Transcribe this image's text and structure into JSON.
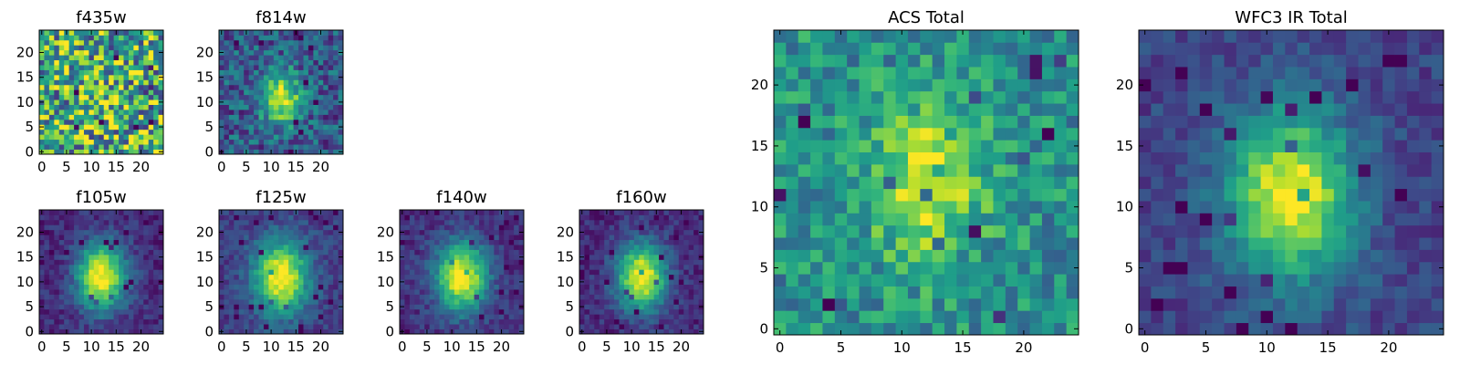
{
  "chart_data": [
    {
      "type": "heatmap",
      "title": "f435w",
      "xlim": [
        0,
        25
      ],
      "ylim": [
        0,
        25
      ],
      "xticks": [
        "0",
        "5",
        "10",
        "15",
        "20"
      ],
      "yticks": [
        "0",
        "5",
        "10",
        "15",
        "20"
      ],
      "colormap": "viridis",
      "peak": [
        12,
        12
      ],
      "peak_strength": 0.05,
      "spread": 4.0,
      "noise": 0.45,
      "base": 0.62
    },
    {
      "type": "heatmap",
      "title": "f814w",
      "xlim": [
        0,
        25
      ],
      "ylim": [
        0,
        25
      ],
      "xticks": [
        "0",
        "5",
        "10",
        "15",
        "20"
      ],
      "yticks": [
        "0",
        "5",
        "10",
        "15",
        "20"
      ],
      "colormap": "viridis",
      "peak": [
        12,
        11
      ],
      "peak_strength": 0.7,
      "spread": 2.8,
      "noise": 0.22,
      "base": 0.28
    },
    {
      "type": "heatmap",
      "title": "f105w",
      "xlim": [
        0,
        25
      ],
      "ylim": [
        0,
        25
      ],
      "xticks": [
        "0",
        "5",
        "10",
        "15",
        "20"
      ],
      "yticks": [
        "0",
        "5",
        "10",
        "15",
        "20"
      ],
      "colormap": "viridis",
      "peak": [
        12,
        11
      ],
      "peak_strength": 0.9,
      "spread": 3.5,
      "noise": 0.1,
      "base": 0.12
    },
    {
      "type": "heatmap",
      "title": "f125w",
      "xlim": [
        0,
        25
      ],
      "ylim": [
        0,
        25
      ],
      "xticks": [
        "0",
        "5",
        "10",
        "15",
        "20"
      ],
      "yticks": [
        "0",
        "5",
        "10",
        "15",
        "20"
      ],
      "colormap": "viridis",
      "peak": [
        12,
        11
      ],
      "peak_strength": 0.85,
      "spread": 3.8,
      "noise": 0.1,
      "base": 0.18
    },
    {
      "type": "heatmap",
      "title": "f140w",
      "xlim": [
        0,
        25
      ],
      "ylim": [
        0,
        25
      ],
      "xticks": [
        "0",
        "5",
        "10",
        "15",
        "20"
      ],
      "yticks": [
        "0",
        "5",
        "10",
        "15",
        "20"
      ],
      "colormap": "viridis",
      "peak": [
        12,
        11
      ],
      "peak_strength": 0.9,
      "spread": 3.6,
      "noise": 0.1,
      "base": 0.14
    },
    {
      "type": "heatmap",
      "title": "f160w",
      "xlim": [
        0,
        25
      ],
      "ylim": [
        0,
        25
      ],
      "xticks": [
        "0",
        "5",
        "10",
        "15",
        "20"
      ],
      "yticks": [
        "0",
        "5",
        "10",
        "15",
        "20"
      ],
      "colormap": "viridis",
      "peak": [
        12,
        11
      ],
      "peak_strength": 0.9,
      "spread": 3.5,
      "noise": 0.1,
      "base": 0.12
    },
    {
      "type": "heatmap",
      "title": "ACS Total",
      "xlim": [
        0,
        25
      ],
      "ylim": [
        0,
        25
      ],
      "xticks": [
        "0",
        "5",
        "10",
        "15",
        "20"
      ],
      "yticks": [
        "0",
        "5",
        "10",
        "15",
        "20"
      ],
      "colormap": "viridis",
      "peak": [
        12,
        12
      ],
      "peak_strength": 0.45,
      "spread": 3.2,
      "noise": 0.2,
      "base": 0.5
    },
    {
      "type": "heatmap",
      "title": "WFC3 IR Total",
      "xlim": [
        0,
        25
      ],
      "ylim": [
        0,
        25
      ],
      "xticks": [
        "0",
        "5",
        "10",
        "15",
        "20"
      ],
      "yticks": [
        "0",
        "5",
        "10",
        "15",
        "20"
      ],
      "colormap": "viridis",
      "peak": [
        12,
        11
      ],
      "peak_strength": 0.8,
      "spread": 3.6,
      "noise": 0.1,
      "base": 0.2
    }
  ]
}
